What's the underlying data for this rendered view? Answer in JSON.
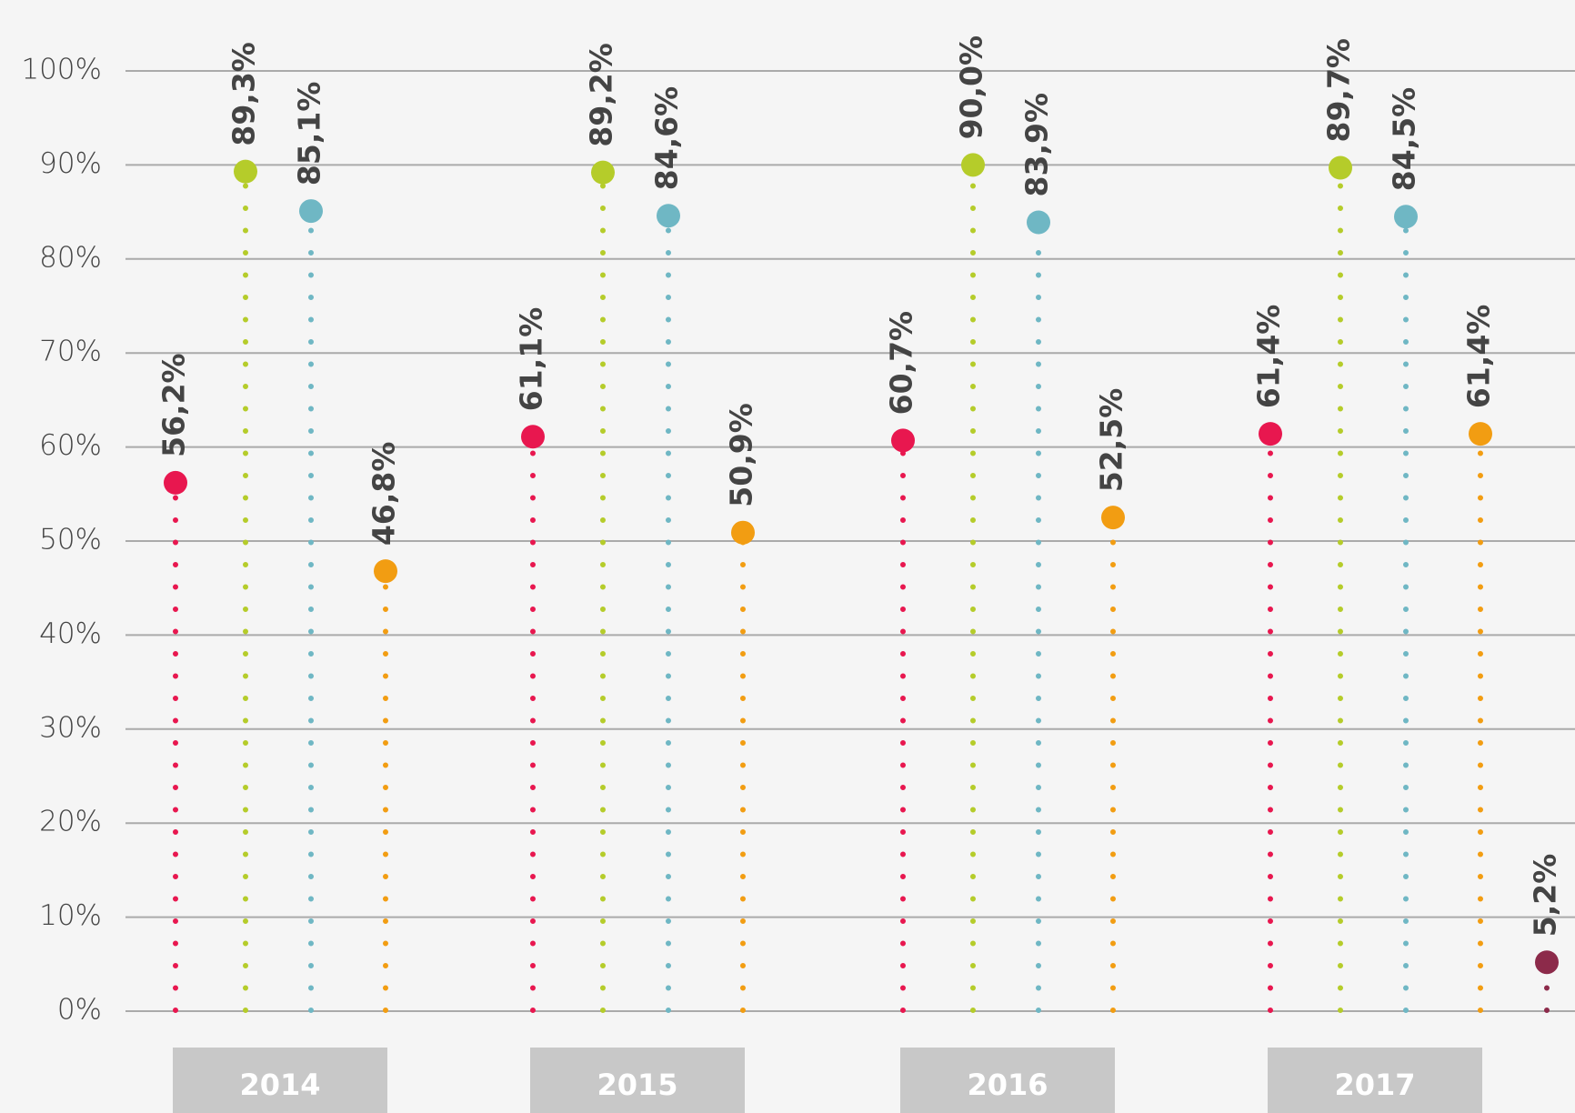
{
  "chart_data": {
    "type": "lollipop",
    "categories": [
      "2014",
      "2015",
      "2016",
      "2017"
    ],
    "series": [
      {
        "color": "#e8174f",
        "values": [
          56.2,
          61.1,
          60.7,
          61.4
        ],
        "value_labels": [
          "56,2%",
          "61,1%",
          "60,7%",
          "61,4%"
        ]
      },
      {
        "color": "#b5cc2a",
        "values": [
          89.3,
          89.2,
          90.0,
          89.7
        ],
        "value_labels": [
          "89,3%",
          "89,2%",
          "90,0%",
          "89,7%"
        ]
      },
      {
        "color": "#6fb7c4",
        "values": [
          85.1,
          84.6,
          83.9,
          84.5
        ],
        "value_labels": [
          "85,1%",
          "84,6%",
          "83,9%",
          "84,5%"
        ]
      },
      {
        "color": "#f29d12",
        "values": [
          46.8,
          50.9,
          52.5,
          61.4
        ],
        "value_labels": [
          "46,8%",
          "50,9%",
          "52,5%",
          "61,4%"
        ]
      },
      {
        "color": "#8c2a4a",
        "values": [
          null,
          null,
          null,
          5.2
        ],
        "value_labels": [
          null,
          null,
          null,
          "5,2%"
        ]
      }
    ],
    "ylim": [
      0,
      100
    ],
    "yticks": [
      {
        "value": 0,
        "label": "0%"
      },
      {
        "value": 10,
        "label": "10%"
      },
      {
        "value": 20,
        "label": "20%"
      },
      {
        "value": 30,
        "label": "30%"
      },
      {
        "value": 40,
        "label": "40%"
      },
      {
        "value": 50,
        "label": "50%"
      },
      {
        "value": 60,
        "label": "60%"
      },
      {
        "value": 70,
        "label": "70%"
      },
      {
        "value": 80,
        "label": "80%"
      },
      {
        "value": 90,
        "label": "90%"
      },
      {
        "value": 100,
        "label": "100%"
      }
    ],
    "grid": true
  }
}
